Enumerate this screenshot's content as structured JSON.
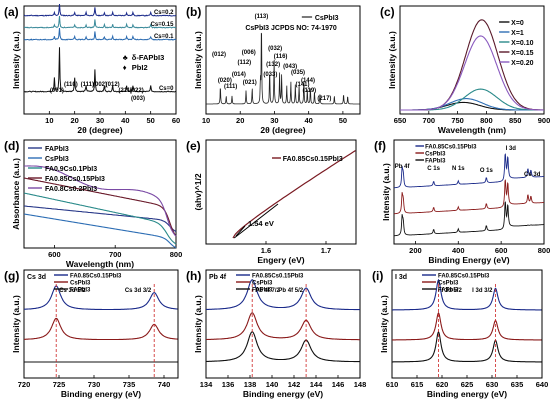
{
  "chart_data": [
    {
      "panel": "(a)",
      "type": "line",
      "xlabel": "2θ (degree)",
      "ylabel": "Intensity (a.u.)",
      "xlim": [
        0,
        60
      ],
      "xticks": [
        10,
        20,
        30,
        40,
        50,
        60
      ],
      "series": [
        {
          "name": "Cs=0.2",
          "color": "#1a2a8a"
        },
        {
          "name": "Cs=0.15",
          "color": "#3a8a9a"
        },
        {
          "name": "Cs=0.1",
          "color": "#2a6ab0"
        },
        {
          "name": "Cs=0",
          "color": "#111111"
        }
      ],
      "legend": [
        {
          "symbol": "♣",
          "label": "δ-FAPbI3"
        },
        {
          "symbol": "♦",
          "label": "PbI2"
        }
      ],
      "annotations": [
        "(001)",
        "(110)",
        "(111)",
        "(002)",
        "(012)",
        "(211)",
        "(022)",
        "(003)"
      ]
    },
    {
      "panel": "(b)",
      "type": "line",
      "xlabel": "2θ (degree)",
      "ylabel": "Intensity (a.u.)",
      "xlim": [
        10,
        55
      ],
      "xticks": [
        10,
        20,
        30,
        40,
        50
      ],
      "series": [
        {
          "name": "CsPbI3",
          "color": "#222222"
        }
      ],
      "reference": "CsPbI3  JCPDS NO: 74-1970",
      "annotations": [
        "(113)",
        "(012)",
        "(020)",
        "(111)",
        "(014)",
        "(112)",
        "(006)",
        "(021)",
        "(032)",
        "(132)",
        "(116)",
        "(033)",
        "(043)",
        "(035)",
        "(141)",
        "(144)",
        "(119)",
        "(217)"
      ]
    },
    {
      "panel": "(c)",
      "type": "line",
      "xlabel": "Wavelength (nm)",
      "ylabel": "Intensity (a.u.)",
      "xlim": [
        650,
        900
      ],
      "xticks": [
        650,
        700,
        750,
        800,
        850,
        900
      ],
      "series": [
        {
          "name": "X=0",
          "color": "#111111",
          "peak": 760,
          "amp": 0.08
        },
        {
          "name": "X=1",
          "color": "#2f6fb5",
          "peak": 765,
          "amp": 0.12
        },
        {
          "name": "X=0.10",
          "color": "#2a8a8a",
          "peak": 790,
          "amp": 0.22
        },
        {
          "name": "X=0.15",
          "color": "#5a1a2a",
          "peak": 792,
          "amp": 0.95
        },
        {
          "name": "X=0.20",
          "color": "#8a5abf",
          "peak": 790,
          "amp": 0.78
        }
      ]
    },
    {
      "panel": "(d)",
      "type": "line",
      "xlabel": "Wavelength (nm)",
      "ylabel": "Absorbance (a.u.)",
      "xlim": [
        550,
        800
      ],
      "xticks": [
        600,
        700,
        800
      ],
      "series": [
        {
          "name": "FAPbI3",
          "color": "#2a3a8a"
        },
        {
          "name": "CsPbI3",
          "color": "#2f6fb5"
        },
        {
          "name": "FA0.9Cs0.1PbI3",
          "color": "#2a8a8a"
        },
        {
          "name": "FA0.85Cs0.15PbI3",
          "color": "#6a1a2a"
        },
        {
          "name": "FA0.8Cs0.2PbI3",
          "color": "#7a4aa5"
        }
      ]
    },
    {
      "panel": "(e)",
      "type": "line",
      "xlabel": "Engery (eV)",
      "ylabel": "(ahv)^1/2",
      "xlim": [
        1.5,
        1.75
      ],
      "xticks": [
        1.6,
        1.7
      ],
      "series": [
        {
          "name": "FA0.85Cs0.15PbI3",
          "color": "#7a1a22"
        }
      ],
      "annotation": "1.54 eV"
    },
    {
      "panel": "(f)",
      "type": "line",
      "xlabel": "Binding Energy (eV)",
      "ylabel": "Intensity (a.u.)",
      "xlim": [
        100,
        800
      ],
      "xticks": [
        200,
        400,
        600,
        800
      ],
      "series": [
        {
          "name": "FA0.85Cs0.15PbI3",
          "color": "#1a2a8a"
        },
        {
          "name": "CsPbI3",
          "color": "#8a1a1a"
        },
        {
          "name": "FAPbI3",
          "color": "#111111"
        }
      ],
      "annotations": [
        "Pb 4f",
        "C 1s",
        "N 1s",
        "O 1s",
        "I 3d",
        "Cs 3d"
      ]
    },
    {
      "panel": "(g)",
      "type": "line",
      "title": "Cs 3d",
      "xlabel": "Binding energy (eV)",
      "ylabel": "Intensity (a.u.)",
      "xlim": [
        720,
        742
      ],
      "xticks": [
        720,
        725,
        730,
        735,
        740
      ],
      "series": [
        {
          "name": "FA0.85Cs0.15PbI3",
          "color": "#1a2a8a"
        },
        {
          "name": "CsPbI3",
          "color": "#8a1a1a"
        },
        {
          "name": "FAPbI3",
          "color": "#111111"
        }
      ],
      "peaks": [
        {
          "label": "Cs 3d 5/2",
          "x": 724.6
        },
        {
          "label": "Cs 3d 3/2",
          "x": 738.6
        }
      ]
    },
    {
      "panel": "(h)",
      "type": "line",
      "title": "Pb 4f",
      "xlabel": "Binding energy (eV)",
      "ylabel": "Intensity (a.u.)",
      "xlim": [
        134,
        148
      ],
      "xticks": [
        134,
        136,
        138,
        140,
        142,
        144,
        146,
        148
      ],
      "series": [
        {
          "name": "FA0.85Cs0.15PbI3",
          "color": "#1a2a8a"
        },
        {
          "name": "CsPbI3",
          "color": "#8a1a1a"
        },
        {
          "name": "FAPbI3",
          "color": "#111111"
        }
      ],
      "peaks": [
        {
          "label": "Pb 4f 7/2",
          "x": 138.2
        },
        {
          "label": "Pb 4f 5/2",
          "x": 143.1
        }
      ]
    },
    {
      "panel": "(i)",
      "type": "line",
      "title": "I 3d",
      "xlabel": "Binding energy (eV)",
      "ylabel": "Intensity (a.u.)",
      "xlim": [
        610,
        640
      ],
      "xticks": [
        610,
        615,
        620,
        625,
        630,
        635,
        640
      ],
      "series": [
        {
          "name": "FA0.85Cs0.15PbI3",
          "color": "#1a2a8a"
        },
        {
          "name": "CsPbI3",
          "color": "#8a1a1a"
        },
        {
          "name": "FAPbI3",
          "color": "#111111"
        }
      ],
      "peaks": [
        {
          "label": "I 3d 5/2",
          "x": 619.3
        },
        {
          "label": "I 3d 3/2",
          "x": 630.7
        }
      ]
    }
  ]
}
